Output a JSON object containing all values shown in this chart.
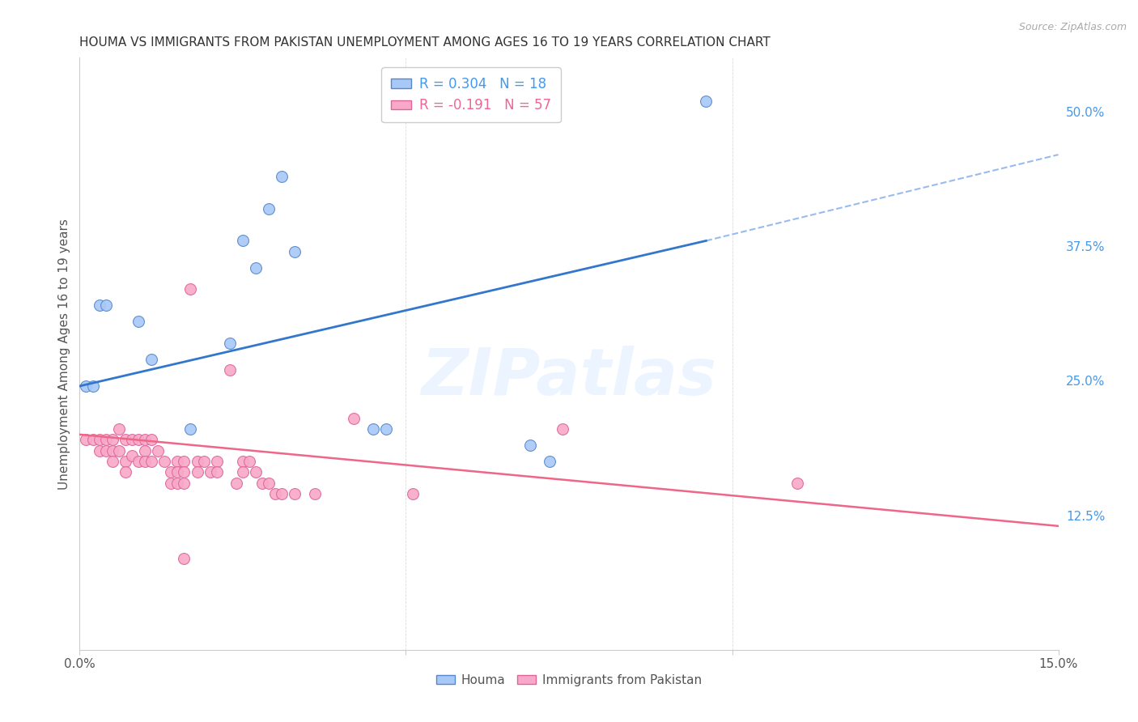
{
  "title": "HOUMA VS IMMIGRANTS FROM PAKISTAN UNEMPLOYMENT AMONG AGES 16 TO 19 YEARS CORRELATION CHART",
  "source": "Source: ZipAtlas.com",
  "ylabel": "Unemployment Among Ages 16 to 19 years",
  "xlim": [
    0.0,
    0.15
  ],
  "ylim": [
    0.0,
    0.55
  ],
  "houma_scatter": [
    [
      0.001,
      0.245
    ],
    [
      0.002,
      0.245
    ],
    [
      0.003,
      0.32
    ],
    [
      0.004,
      0.32
    ],
    [
      0.009,
      0.305
    ],
    [
      0.011,
      0.27
    ],
    [
      0.017,
      0.205
    ],
    [
      0.023,
      0.285
    ],
    [
      0.025,
      0.38
    ],
    [
      0.027,
      0.355
    ],
    [
      0.029,
      0.41
    ],
    [
      0.031,
      0.44
    ],
    [
      0.033,
      0.37
    ],
    [
      0.045,
      0.205
    ],
    [
      0.047,
      0.205
    ],
    [
      0.069,
      0.19
    ],
    [
      0.072,
      0.175
    ],
    [
      0.096,
      0.51
    ]
  ],
  "pakistan_scatter": [
    [
      0.001,
      0.195
    ],
    [
      0.002,
      0.195
    ],
    [
      0.003,
      0.195
    ],
    [
      0.003,
      0.185
    ],
    [
      0.004,
      0.195
    ],
    [
      0.004,
      0.185
    ],
    [
      0.005,
      0.195
    ],
    [
      0.005,
      0.185
    ],
    [
      0.005,
      0.175
    ],
    [
      0.006,
      0.205
    ],
    [
      0.006,
      0.185
    ],
    [
      0.007,
      0.195
    ],
    [
      0.007,
      0.175
    ],
    [
      0.007,
      0.165
    ],
    [
      0.008,
      0.195
    ],
    [
      0.008,
      0.18
    ],
    [
      0.009,
      0.195
    ],
    [
      0.009,
      0.175
    ],
    [
      0.01,
      0.195
    ],
    [
      0.01,
      0.185
    ],
    [
      0.01,
      0.175
    ],
    [
      0.011,
      0.195
    ],
    [
      0.011,
      0.175
    ],
    [
      0.012,
      0.185
    ],
    [
      0.013,
      0.175
    ],
    [
      0.014,
      0.165
    ],
    [
      0.014,
      0.155
    ],
    [
      0.015,
      0.175
    ],
    [
      0.015,
      0.165
    ],
    [
      0.015,
      0.155
    ],
    [
      0.016,
      0.175
    ],
    [
      0.016,
      0.165
    ],
    [
      0.016,
      0.155
    ],
    [
      0.017,
      0.335
    ],
    [
      0.018,
      0.175
    ],
    [
      0.018,
      0.165
    ],
    [
      0.019,
      0.175
    ],
    [
      0.02,
      0.165
    ],
    [
      0.021,
      0.175
    ],
    [
      0.021,
      0.165
    ],
    [
      0.023,
      0.26
    ],
    [
      0.024,
      0.155
    ],
    [
      0.025,
      0.175
    ],
    [
      0.025,
      0.165
    ],
    [
      0.026,
      0.175
    ],
    [
      0.027,
      0.165
    ],
    [
      0.028,
      0.155
    ],
    [
      0.029,
      0.155
    ],
    [
      0.03,
      0.145
    ],
    [
      0.031,
      0.145
    ],
    [
      0.033,
      0.145
    ],
    [
      0.036,
      0.145
    ],
    [
      0.042,
      0.215
    ],
    [
      0.051,
      0.145
    ],
    [
      0.074,
      0.205
    ],
    [
      0.11,
      0.155
    ],
    [
      0.016,
      0.085
    ]
  ],
  "houma_line": {
    "x0": 0.0,
    "y0": 0.245,
    "x1": 0.096,
    "y1": 0.38
  },
  "houma_dashed_line": {
    "x0": 0.096,
    "y0": 0.38,
    "x1": 0.15,
    "y1": 0.46
  },
  "pakistan_line": {
    "x0": 0.0,
    "y0": 0.2,
    "x1": 0.15,
    "y1": 0.115
  },
  "houma_color": "#a8c8f8",
  "houma_edge": "#5588cc",
  "pakistan_color": "#f8a8c8",
  "pakistan_edge": "#dd6699",
  "blue_line_color": "#3377cc",
  "blue_dash_color": "#99bbee",
  "pink_line_color": "#ee6688",
  "background_color": "#ffffff",
  "grid_color": "#cccccc",
  "watermark_text": "ZIPatlas",
  "legend_line1": "R = 0.304   N = 18",
  "legend_line2": "R = -0.191   N = 57",
  "legend_color1": "#4499ee",
  "legend_color2": "#ee6699"
}
